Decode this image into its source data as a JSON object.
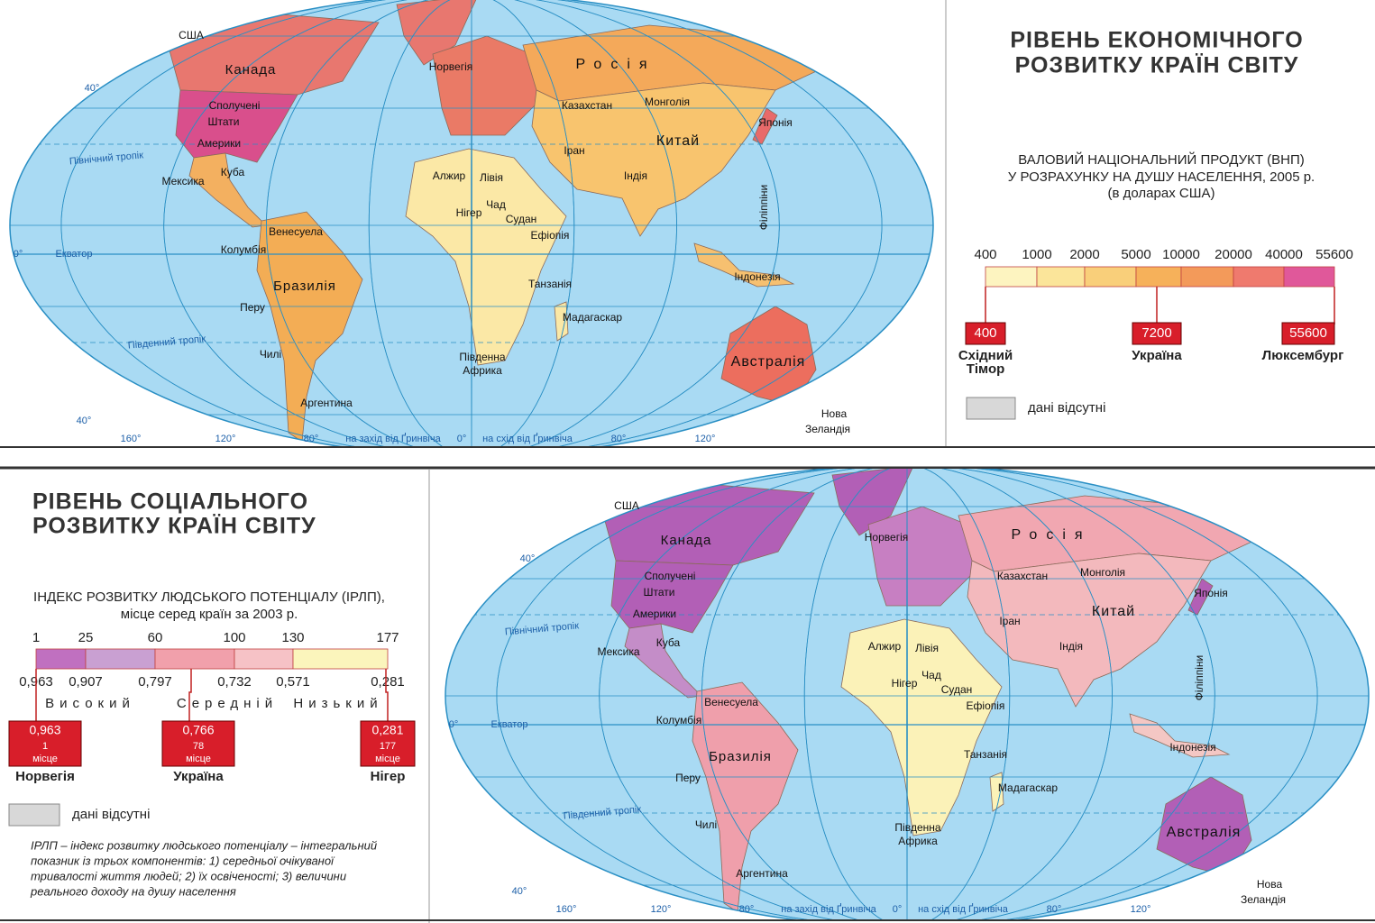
{
  "economic": {
    "title": [
      "РІВЕНЬ ЕКОНОМІЧНОГО",
      "РОЗВИТКУ КРАЇН СВІТУ"
    ],
    "subtitle": [
      "ВАЛОВИЙ НАЦІОНАЛЬНИЙ ПРОДУКТ (ВНП)",
      "У РОЗРАХУНКУ НА ДУШУ НАСЕЛЕННЯ, 2005 р.",
      "(в доларах США)"
    ],
    "scale": [
      400,
      1000,
      2000,
      5000,
      10000,
      20000,
      40000,
      55600
    ],
    "examples": [
      {
        "value": "400",
        "name": [
          "Східний",
          "Тімор"
        ]
      },
      {
        "value": "7200",
        "name": [
          "Україна"
        ]
      },
      {
        "value": "55600",
        "name": [
          "Люксембург"
        ]
      }
    ],
    "no_data": "дані відсутні"
  },
  "social": {
    "title": [
      "РІВЕНЬ СОЦІАЛЬНОГО",
      "РОЗВИТКУ КРАЇН СВІТУ"
    ],
    "subtitle": [
      "ІНДЕКС РОЗВИТКУ ЛЮДСЬКОГО ПОТЕНЦІАЛУ (ІРЛП),",
      "місце серед країн за 2003 р."
    ],
    "ranks": [
      1,
      25,
      60,
      100,
      130,
      177
    ],
    "indices": [
      "0,963",
      "0,907",
      "0,797",
      "0,732",
      "0,571",
      "0,281"
    ],
    "levels": [
      "Високий",
      "Середній",
      "Низький"
    ],
    "examples": [
      {
        "value": "0,963",
        "rank": "1",
        "unit": "місце",
        "name": "Норвегія"
      },
      {
        "value": "0,766",
        "rank": "78",
        "unit": "місце",
        "name": "Україна"
      },
      {
        "value": "0,281",
        "rank": "177",
        "unit": "місце",
        "name": "Нігер"
      }
    ],
    "no_data": "дані відсутні",
    "note": [
      "ІРЛП – індекс розвитку людського потенціалу – інтегральний",
      "показник із трьох компонентів: 1) середньої очікуваної",
      "тривалості життя людей; 2) їх освіченості; 3) величини",
      "реального доходу на душу населення"
    ]
  },
  "map_labels": [
    "США",
    "Канада",
    "Сполучені",
    "Штати",
    "Америки",
    "Мексика",
    "Куба",
    "Венесуела",
    "Колумбія",
    "Бразилія",
    "Перу",
    "Чилі",
    "Аргентина",
    "Норвегія",
    "Росія",
    "Казахстан",
    "Монголія",
    "Китай",
    "Іран",
    "Індія",
    "Японія",
    "Філіппіни",
    "Індонезія",
    "Алжир",
    "Лівія",
    "Нігер",
    "Чад",
    "Судан",
    "Ефіопія",
    "Танзанія",
    "Мадагаскар",
    "Південна",
    "Африка",
    "Австралія",
    "Нова",
    "Зеландія"
  ],
  "grid_labels": [
    "40°",
    "40°",
    "Північний тропік",
    "0°",
    "Екватор",
    "Південний тропік",
    "160°",
    "120°",
    "80°",
    "на захід від Ґринвіча",
    "0°",
    "на схід від Ґринвіча",
    "80°",
    "120°"
  ]
}
